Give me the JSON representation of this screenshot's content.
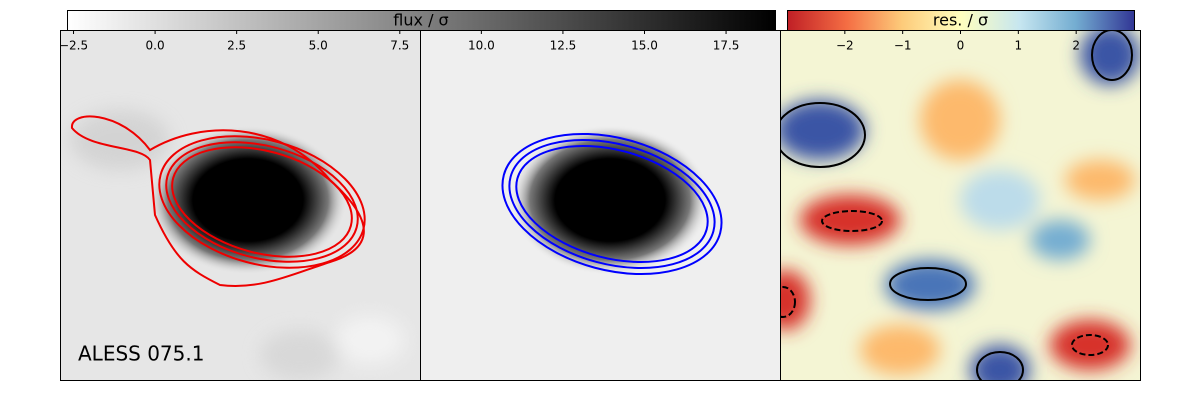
{
  "chart_data": [
    {
      "type": "colorbar",
      "label": "flux / σ",
      "cmap": "gray_r",
      "lim": [
        -2.7,
        19.0
      ],
      "ticks": [
        {
          "value": -2.5,
          "label": "−2.5"
        },
        {
          "value": 0.0,
          "label": "0.0"
        },
        {
          "value": 2.5,
          "label": "2.5"
        },
        {
          "value": 5.0,
          "label": "5.0"
        },
        {
          "value": 7.5,
          "label": "7.5"
        },
        {
          "value": 10.0,
          "label": "10.0"
        },
        {
          "value": 12.5,
          "label": "12.5"
        },
        {
          "value": 15.0,
          "label": "15.0"
        },
        {
          "value": 17.5,
          "label": "17.5"
        }
      ]
    },
    {
      "type": "colorbar",
      "label": "res. / σ",
      "cmap": "RdYlBu",
      "lim": [
        -3,
        3
      ],
      "ticks": [
        {
          "value": -2,
          "label": "−2"
        },
        {
          "value": -1,
          "label": "−1"
        },
        0,
        1,
        2
      ]
    }
  ],
  "panel_label": "ALESS 075.1"
}
